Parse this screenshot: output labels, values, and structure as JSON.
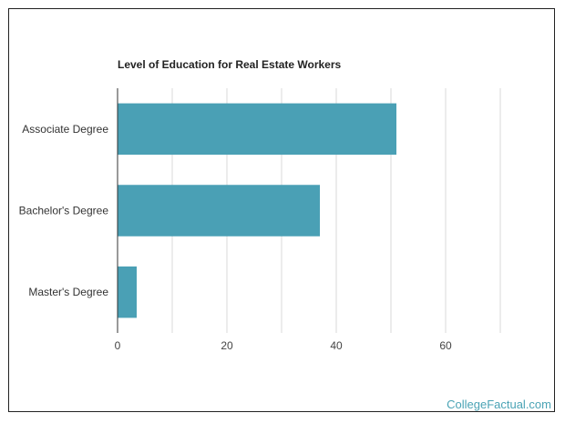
{
  "chart_data": {
    "type": "bar",
    "orientation": "horizontal",
    "title": "Level of Education for Real Estate Workers",
    "categories": [
      "Associate Degree",
      "Bachelor's Degree",
      "Master's Degree"
    ],
    "values": [
      51,
      37,
      3.5
    ],
    "xlim": [
      0,
      80
    ],
    "xticks": [
      0,
      20,
      40,
      60
    ],
    "xlabel": "",
    "ylabel": "",
    "grid": true,
    "legend": "none",
    "bar_color": "#4aa0b5"
  },
  "watermark": "CollegeFactual.com"
}
